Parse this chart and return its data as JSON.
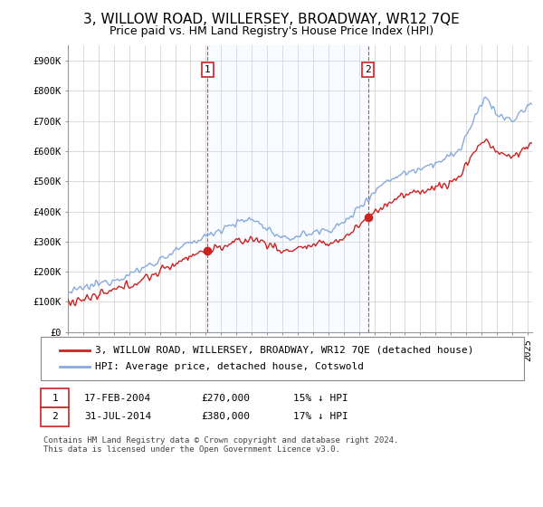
{
  "title": "3, WILLOW ROAD, WILLERSEY, BROADWAY, WR12 7QE",
  "subtitle": "Price paid vs. HM Land Registry's House Price Index (HPI)",
  "ylabel_ticks": [
    "£0",
    "£100K",
    "£200K",
    "£300K",
    "£400K",
    "£500K",
    "£600K",
    "£700K",
    "£800K",
    "£900K"
  ],
  "ytick_values": [
    0,
    100000,
    200000,
    300000,
    400000,
    500000,
    600000,
    700000,
    800000,
    900000
  ],
  "ylim": [
    0,
    950000
  ],
  "xlim_start": 1995.0,
  "xlim_end": 2025.3,
  "line1_label": "3, WILLOW ROAD, WILLERSEY, BROADWAY, WR12 7QE (detached house)",
  "line1_color": "#cc2222",
  "line2_label": "HPI: Average price, detached house, Cotswold",
  "line2_color": "#88aadd",
  "shade_color": "#ddeeff",
  "transaction1_date": "17-FEB-2004",
  "transaction1_price": "£270,000",
  "transaction1_hpi": "15% ↓ HPI",
  "transaction2_date": "31-JUL-2014",
  "transaction2_price": "£380,000",
  "transaction2_hpi": "17% ↓ HPI",
  "vline1_year": 2004.125,
  "vline2_year": 2014.583,
  "marker1_value": 270000,
  "marker2_value": 380000,
  "footnote": "Contains HM Land Registry data © Crown copyright and database right 2024.\nThis data is licensed under the Open Government Licence v3.0.",
  "background_color": "#ffffff",
  "grid_color": "#cccccc",
  "title_fontsize": 11,
  "subtitle_fontsize": 9,
  "tick_fontsize": 7.5,
  "legend_fontsize": 8
}
